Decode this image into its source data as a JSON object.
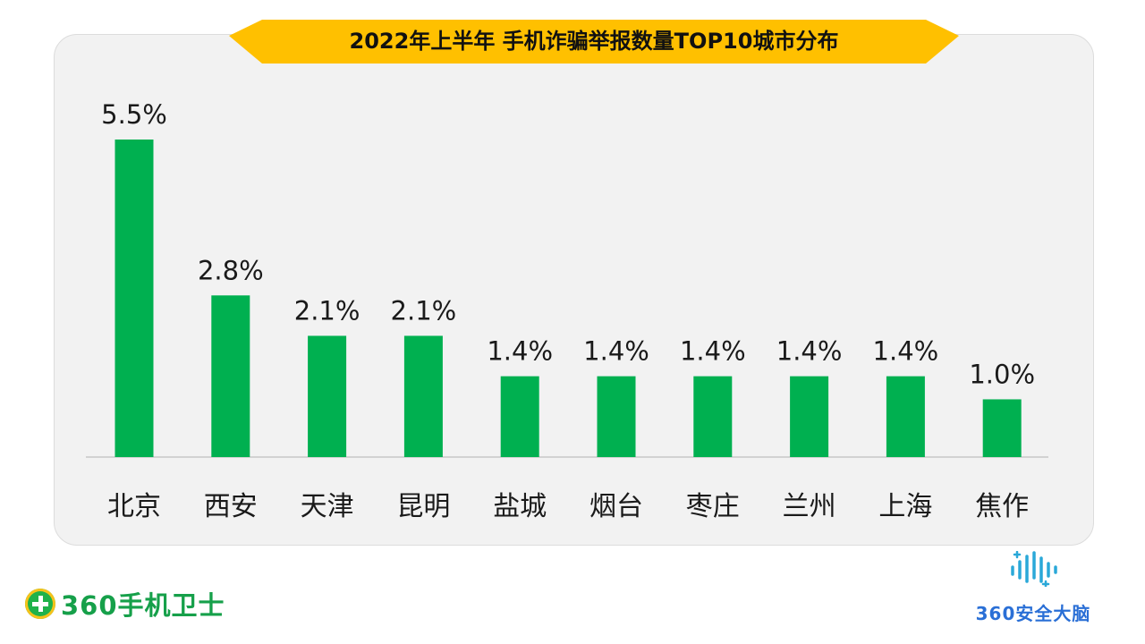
{
  "chart_data": {
    "type": "bar",
    "title": "2022年上半年 手机诈骗举报数量TOP10城市分布",
    "categories": [
      "北京",
      "西安",
      "天津",
      "昆明",
      "盐城",
      "烟台",
      "枣庄",
      "兰州",
      "上海",
      "焦作"
    ],
    "values": [
      5.5,
      2.8,
      2.1,
      2.1,
      1.4,
      1.4,
      1.4,
      1.4,
      1.4,
      1.0
    ],
    "value_labels": [
      "5.5%",
      "2.8%",
      "2.1%",
      "2.1%",
      "1.4%",
      "1.4%",
      "1.4%",
      "1.4%",
      "1.4%",
      "1.0%"
    ],
    "xlabel": "",
    "ylabel": "",
    "ylim": [
      0,
      5.5
    ],
    "grid": false,
    "bar_color": "#00b050"
  },
  "branding": {
    "left_logo_text": "360手机卫士",
    "right_logo_text": "360安全大脑",
    "left_logo_color": "#16a04a",
    "right_logo_color": "#2a6fd6",
    "banner_color": "#ffc000"
  }
}
